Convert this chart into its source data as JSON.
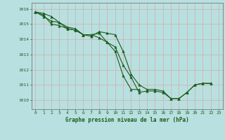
{
  "title": "Graphe pression niveau de la mer (hPa)",
  "bg_color": "#b8e0e0",
  "grid_color": "#d8a8a8",
  "line_color": "#1a5c1a",
  "marker": "^",
  "markersize": 2.5,
  "linewidth": 0.8,
  "xlim": [
    -0.5,
    23.5
  ],
  "ylim": [
    1009.4,
    1016.4
  ],
  "yticks": [
    1010,
    1011,
    1012,
    1013,
    1014,
    1015,
    1016
  ],
  "xticks": [
    0,
    1,
    2,
    3,
    4,
    5,
    6,
    7,
    8,
    9,
    10,
    11,
    12,
    13,
    14,
    15,
    16,
    17,
    18,
    19,
    20,
    21,
    22,
    23
  ],
  "series": [
    [
      1015.8,
      1015.7,
      1015.5,
      1015.1,
      1014.8,
      1014.7,
      1014.3,
      1014.2,
      1014.5,
      1014.4,
      1014.3,
      1013.2,
      1011.7,
      1011.0,
      1010.7,
      1010.7,
      1010.6,
      1010.1,
      1010.1,
      1010.5,
      1011.0,
      1011.1,
      1011.1,
      null
    ],
    [
      1015.8,
      1015.5,
      1015.2,
      1015.1,
      1014.7,
      1014.6,
      1014.3,
      1014.3,
      1014.1,
      1013.8,
      1013.2,
      1011.6,
      1010.7,
      1010.7,
      null,
      null,
      null,
      null,
      null,
      null,
      null,
      null,
      null,
      null
    ],
    [
      1015.8,
      1015.6,
      1015.0,
      1014.9,
      1014.7,
      1014.6,
      1014.3,
      1014.3,
      1014.4,
      1013.8,
      1013.5,
      1012.3,
      1011.5,
      1010.5,
      1010.6,
      1010.6,
      1010.5,
      1010.1,
      1010.1,
      1010.5,
      1011.0,
      1011.1,
      1011.1,
      null
    ]
  ],
  "title_fontsize": 5.5,
  "tick_fontsize": 4.5,
  "spine_color": "#666666"
}
